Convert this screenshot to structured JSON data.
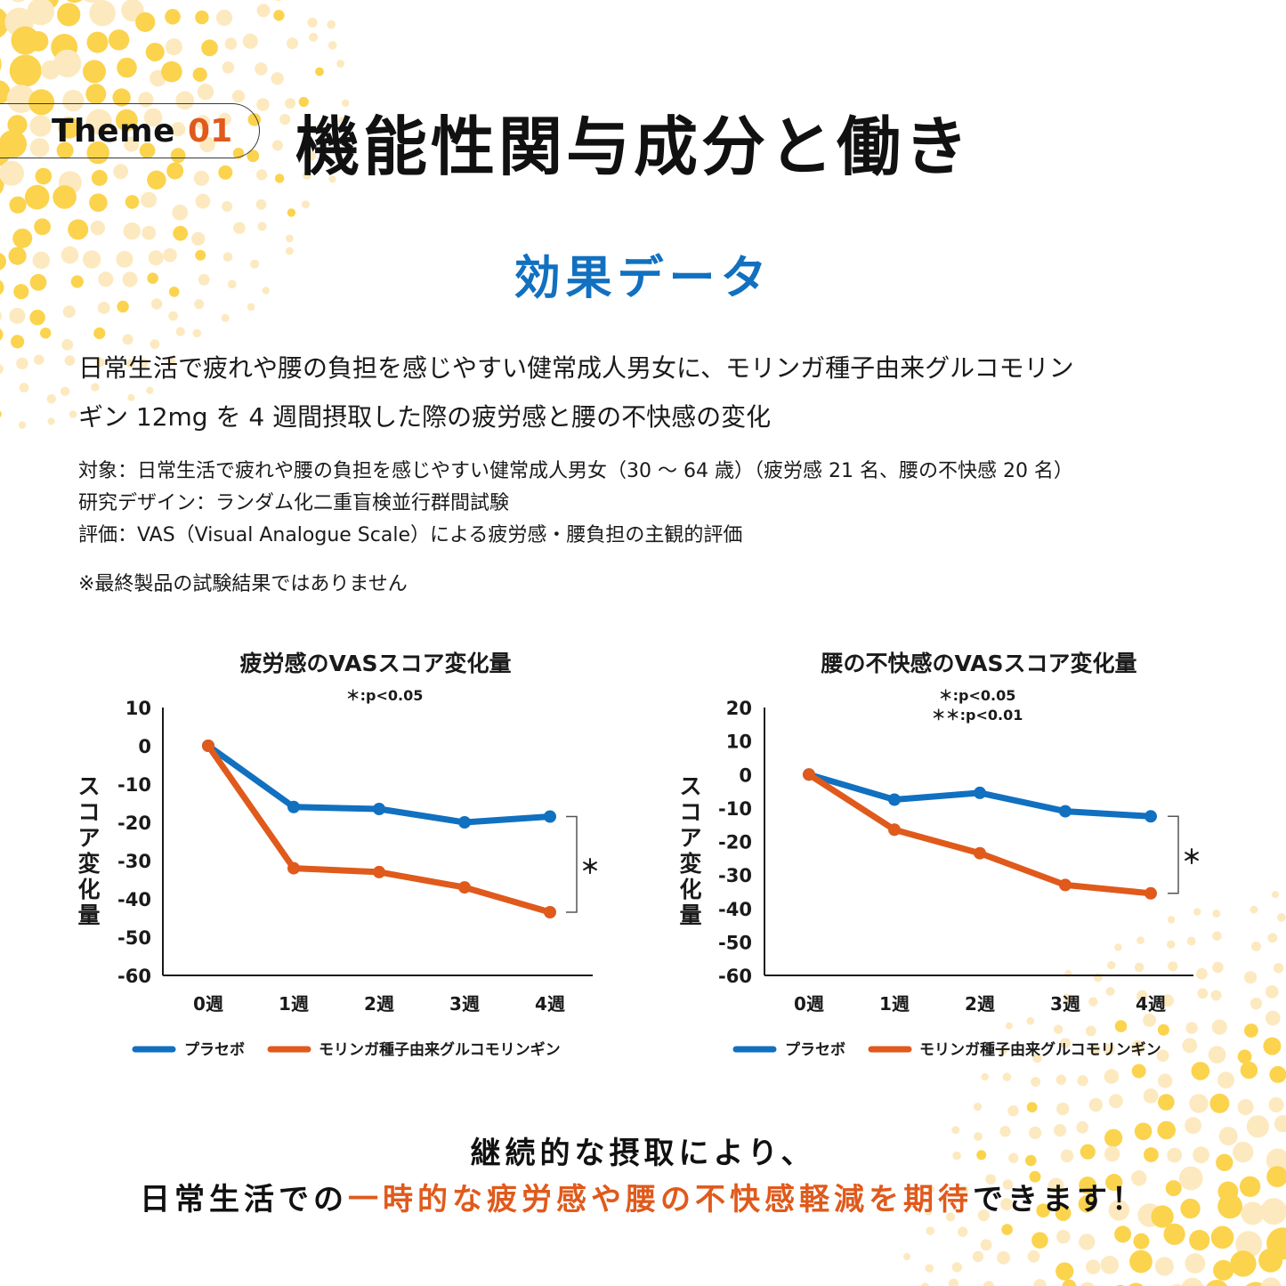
{
  "header": {
    "theme_label": "Theme",
    "theme_number": "01",
    "title": "機能性関与成分と働き"
  },
  "section": {
    "title": "効果データ"
  },
  "lead": {
    "line1": "日常生活で疲れや腰の負担を感じやすい健常成人男女に、モリンガ種子由来グルコモリン",
    "line2": "ギン 12mg を 4 週間摂取した際の疲労感と腰の不快感の変化"
  },
  "study": {
    "subjects": "対象：日常生活で疲れや腰の負担を感じやすい健常成人男女（30 ～ 64 歳）（疲労感 21 名、腰の不快感 20 名）",
    "design": "研究デザイン：ランダム化二重盲検並行群間試験",
    "evaluation": "評価：VAS（Visual Analogue Scale）による疲労感・腰負担の主観的評価",
    "note": "※最終製品の試験結果ではありません"
  },
  "colors": {
    "placebo": "#1170c0",
    "moringa": "#e05a1c",
    "accent_blue": "#1170c0",
    "accent_orange": "#e05a1c",
    "dots_yellow": "#fbd34d",
    "dots_cream": "#fde9bf"
  },
  "chart_data": [
    {
      "type": "line",
      "title": "疲労感のVASスコア変化量",
      "significance_notes": [
        "＊:p<0.05"
      ],
      "xlabel": "",
      "ylabel": "スコア変化量",
      "categories": [
        "0週",
        "1週",
        "2週",
        "3週",
        "4週"
      ],
      "yticks": [
        "10",
        "0",
        "-10",
        "-20",
        "-30",
        "-40",
        "-50",
        "-60"
      ],
      "ylim": [
        -60,
        10
      ],
      "grid": false,
      "series": [
        {
          "name": "プラセボ",
          "color": "#1170c0",
          "values": [
            0,
            -16,
            -16.5,
            -20,
            -18.5
          ]
        },
        {
          "name": "モリンガ種子由来グルコモリンギン",
          "color": "#e05a1c",
          "values": [
            0,
            -32,
            -33,
            -37,
            -43.5
          ]
        }
      ],
      "significance_bracket": {
        "at": "4週",
        "label": "＊"
      },
      "legend": "bottom"
    },
    {
      "type": "line",
      "title": "腰の不快感のVASスコア変化量",
      "significance_notes": [
        "＊:p<0.05",
        "＊＊:p<0.01"
      ],
      "xlabel": "",
      "ylabel": "スコア変化量",
      "categories": [
        "0週",
        "1週",
        "2週",
        "3週",
        "4週"
      ],
      "yticks": [
        "20",
        "10",
        "0",
        "-10",
        "-20",
        "-30",
        "-40",
        "-50",
        "-60"
      ],
      "ylim": [
        -60,
        20
      ],
      "grid": false,
      "series": [
        {
          "name": "プラセボ",
          "color": "#1170c0",
          "values": [
            0,
            -7.5,
            -5.5,
            -11,
            -12.5
          ]
        },
        {
          "name": "モリンガ種子由来グルコモリンギン",
          "color": "#e05a1c",
          "values": [
            0,
            -16.5,
            -23.5,
            -33,
            -35.5
          ]
        }
      ],
      "significance_bracket": {
        "at": "4週",
        "label": "＊"
      },
      "legend": "bottom"
    }
  ],
  "conclusion": {
    "line1": "継続的な摂取により、",
    "line2_pre": "日常生活での",
    "line2_highlight": "一時的な疲労感や腰の不快感軽減を期待",
    "line2_post": "できます！"
  }
}
